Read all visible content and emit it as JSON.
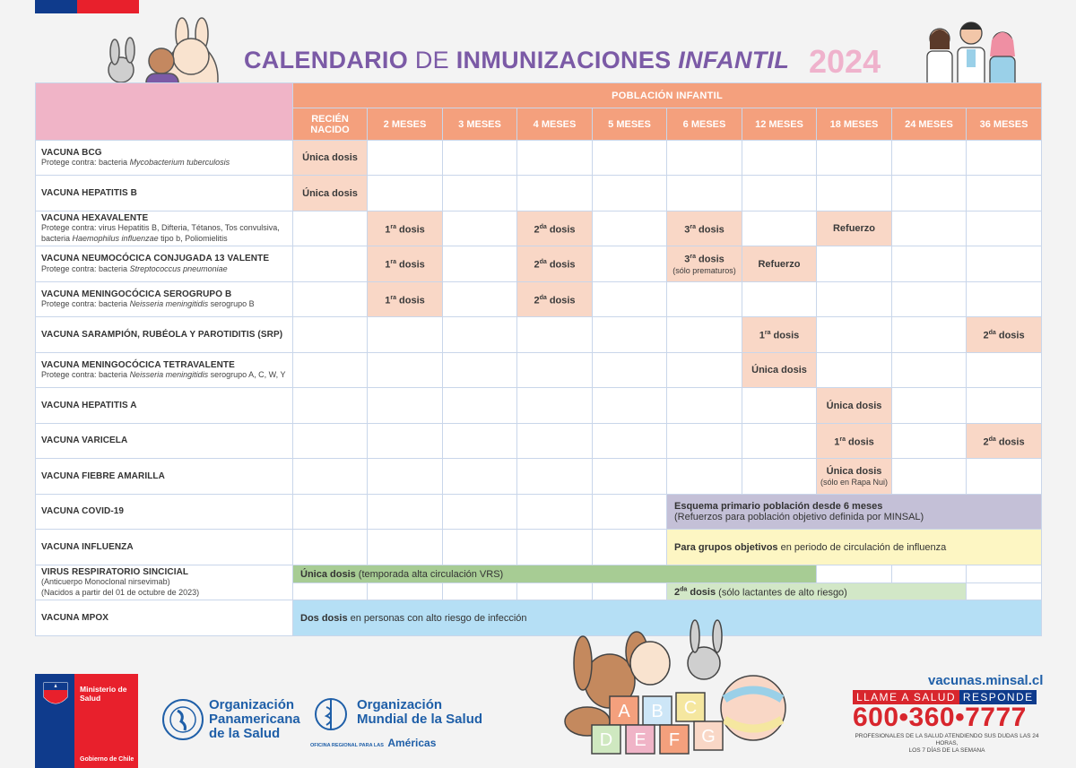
{
  "header": {
    "title_part1": "CALENDARIO",
    "title_part2": "DE",
    "title_part3": "INMUNIZACIONES",
    "title_part4": "INFANTIL",
    "year": "2024",
    "population_label": "POBLACIÓN INFANTIL"
  },
  "ages": [
    "RECIÉN NACIDO",
    "2 MESES",
    "3 MESES",
    "4 MESES",
    "5 MESES",
    "6 MESES",
    "12 MESES",
    "18 MESES",
    "24 MESES",
    "36 MESES"
  ],
  "vaccines": [
    {
      "name": "VACUNA BCG",
      "sub_pre": "Protege contra: bacteria ",
      "sub_it": "Mycobacterium tuberculosis",
      "sub_post": ""
    },
    {
      "name": "VACUNA HEPATITIS B",
      "sub_pre": "",
      "sub_it": "",
      "sub_post": ""
    },
    {
      "name": "VACUNA HEXAVALENTE",
      "sub_pre": "Protege contra: virus Hepatitis B, Difteria, Tétanos, Tos convulsiva, bacteria ",
      "sub_it": "Haemophilus influenzae",
      "sub_post": " tipo b, Poliomielitis"
    },
    {
      "name": "VACUNA NEUMOCÓCICA CONJUGADA 13 VALENTE",
      "sub_pre": "Protege contra: bacteria ",
      "sub_it": "Streptococcus pneumoniae",
      "sub_post": ""
    },
    {
      "name": "VACUNA MENINGOCÓCICA SEROGRUPO B",
      "sub_pre": "Protege contra: bacteria ",
      "sub_it": "Neisseria meningitidis",
      "sub_post": " serogrupo B"
    },
    {
      "name": "VACUNA SARAMPIÓN, RUBÉOLA Y PAROTIDITIS (SRP)",
      "sub_pre": "",
      "sub_it": "",
      "sub_post": ""
    },
    {
      "name": "VACUNA MENINGOCÓCICA TETRAVALENTE",
      "sub_pre": "Protege contra: bacteria ",
      "sub_it": "Neisseria meningitidis",
      "sub_post": " serogrupo A, C, W, Y"
    },
    {
      "name": "VACUNA HEPATITIS A",
      "sub_pre": "",
      "sub_it": "",
      "sub_post": ""
    },
    {
      "name": "VACUNA VARICELA",
      "sub_pre": "",
      "sub_it": "",
      "sub_post": ""
    },
    {
      "name": "VACUNA FIEBRE AMARILLA",
      "sub_pre": "",
      "sub_it": "",
      "sub_post": ""
    }
  ],
  "doses": {
    "unica": "Única dosis",
    "primera_num": "1",
    "primera_sup": "ra",
    "segunda_num": "2",
    "segunda_sup": "da",
    "tercera_num": "3",
    "tercera_sup": "ra",
    "dosis": "dosis",
    "refuerzo": "Refuerzo",
    "prematuros": "(sólo prematuros)",
    "rapa_nui": "(sólo en Rapa Nui)"
  },
  "covid": {
    "name": "VACUNA COVID-19",
    "line1": "Esquema primario población desde 6 meses",
    "line2": "(Refuerzos para población objetivo definida por MINSAL)"
  },
  "influenza": {
    "name": "VACUNA INFLUENZA",
    "bold": "Para grupos objetivos",
    "rest": " en periodo de circulación de influenza"
  },
  "vrs": {
    "name": "VIRUS RESPIRATORIO SINCICIAL",
    "sub1": "(Anticuerpo Monoclonal nirsevimab)",
    "sub2": "(Nacidos a partir del 01 de octubre de 2023)",
    "row1_bold": "Única dosis",
    "row1_rest": " (temporada alta circulación VRS)",
    "row2_rest": " (sólo lactantes de alto riesgo)"
  },
  "mpox": {
    "name": "VACUNA MPOX",
    "bold": "Dos dosis",
    "rest": " en personas con alto riesgo de infección"
  },
  "footer": {
    "ministerio_line1": "Ministerio de",
    "ministerio_line2": "Salud",
    "gobierno": "Gobierno de Chile",
    "ops_line1": "Organización",
    "ops_line2": "Panamericana",
    "ops_line3": "de la Salud",
    "oms_line1": "Organización",
    "oms_line2": "Mundial de la Salud",
    "oms_line3_small": "OFICINA REGIONAL PARA LAS",
    "oms_line3_big": "Américas",
    "website": "vacunas.minsal.cl",
    "llame_part1": "LLAME A SALUD",
    "llame_part2": "RESPONDE",
    "phone": "600•360•7777",
    "note_line1": "PROFESIONALES DE LA SALUD ATENDIENDO SUS DUDAS LAS 24 HORAS,",
    "note_line2": "LOS 7 DÍAS DE LA SEMANA",
    "blocks_letters": [
      "A",
      "B",
      "C",
      "D",
      "E",
      "F",
      "G"
    ]
  },
  "colors": {
    "purple": "#7b5aa6",
    "orange": "#f4a07d",
    "pink_header": "#f0b4c7",
    "dose": "#f9d7c6",
    "chile_blue": "#0f3b8c",
    "chile_red": "#e8202c",
    "phone_red": "#d8262d"
  }
}
